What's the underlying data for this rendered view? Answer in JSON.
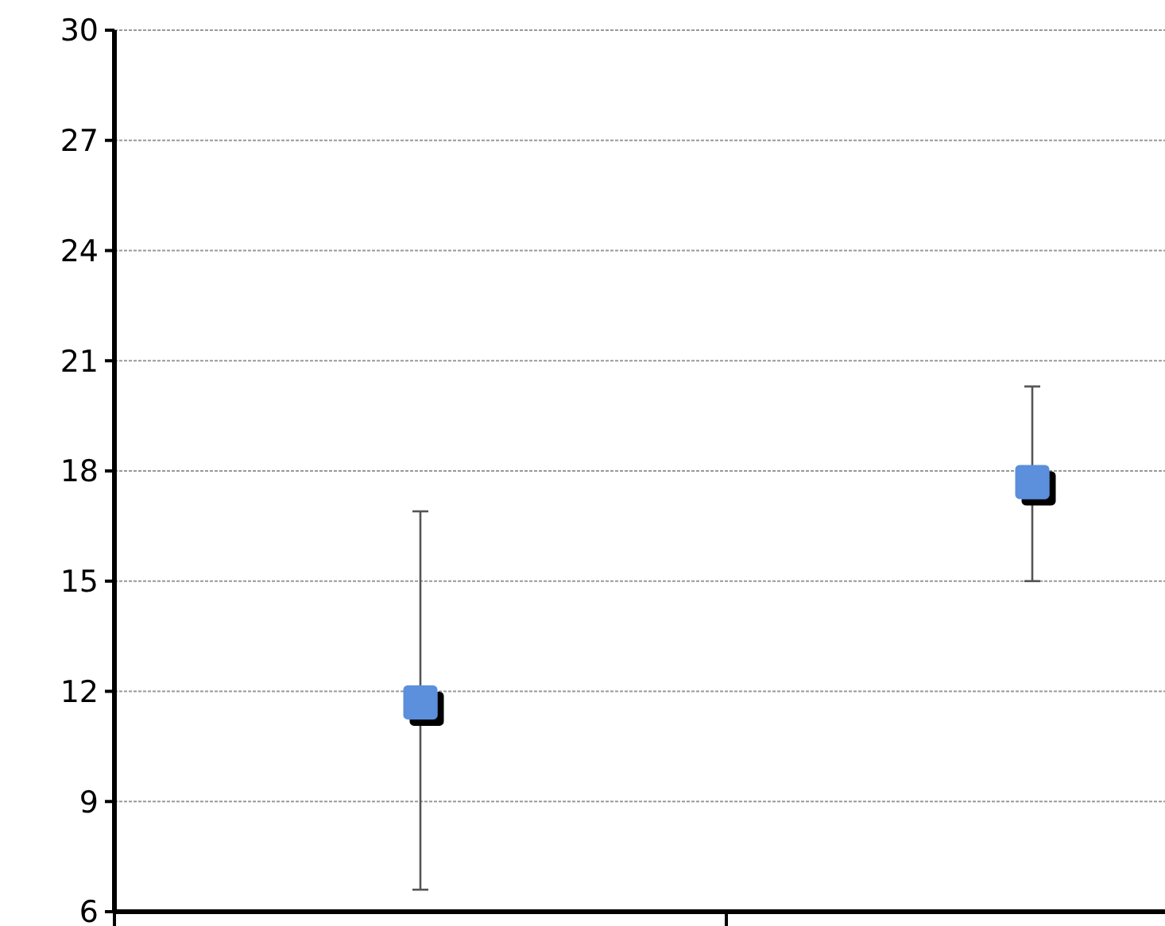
{
  "chart_data": {
    "type": "scatter",
    "categories": [
      null,
      null
    ],
    "values": [
      11.7,
      17.7
    ],
    "errors": [
      [
        6.6,
        16.9
      ],
      [
        15.0,
        20.3
      ]
    ],
    "color": "#5b8fdc",
    "marker": "square",
    "ylim": [
      6,
      30
    ],
    "yticks": [
      6,
      9,
      12,
      15,
      18,
      21,
      24,
      27,
      30
    ],
    "grid": "y"
  }
}
